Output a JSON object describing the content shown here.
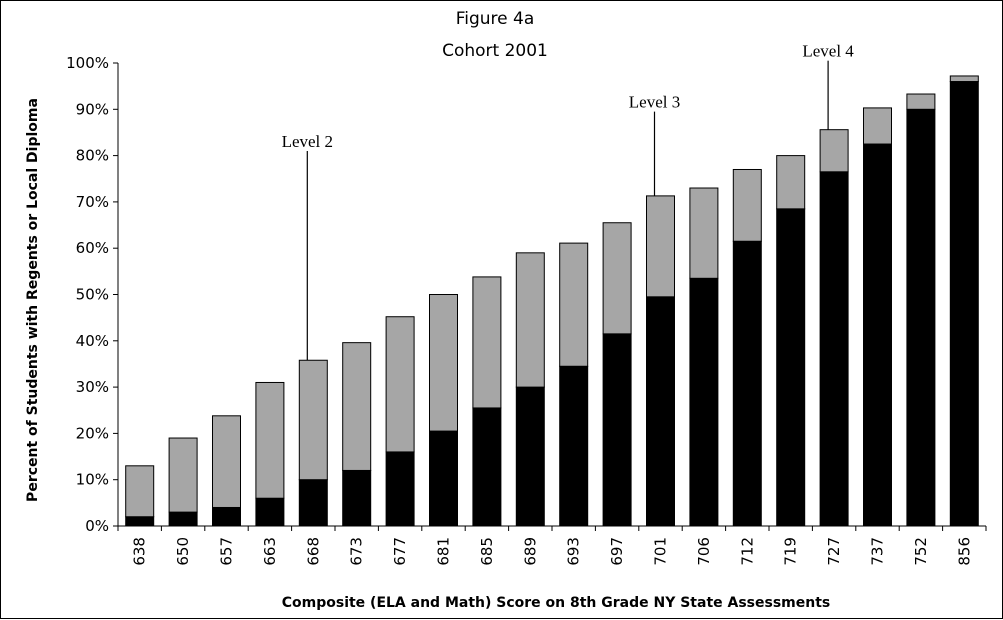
{
  "chart_data": {
    "type": "bar",
    "stacked": true,
    "title": "Figure 4a",
    "subtitle": "Cohort 2001",
    "xlabel": "Composite (ELA and Math) Score on 8th Grade NY State Assessments",
    "ylabel": "Percent of Students with Regents or Local Diploma",
    "categories": [
      "638",
      "650",
      "657",
      "663",
      "668",
      "673",
      "677",
      "681",
      "685",
      "689",
      "693",
      "697",
      "701",
      "706",
      "712",
      "719",
      "727",
      "737",
      "752",
      "856"
    ],
    "series": [
      {
        "key": "black",
        "color": "#000000",
        "values": [
          2,
          3,
          4,
          6,
          10,
          12,
          16,
          20.5,
          25.5,
          30,
          34.5,
          41.5,
          49.5,
          53.5,
          61.5,
          68.5,
          76.5,
          82.5,
          90,
          96
        ]
      },
      {
        "key": "gray",
        "color": "#a6a6a6",
        "values": [
          11,
          16,
          19.8,
          25,
          25.8,
          27.6,
          29.2,
          29.5,
          28.3,
          29,
          26.6,
          24,
          21.8,
          19.5,
          15.5,
          11.5,
          9.1,
          7.8,
          3.3,
          1.2
        ]
      }
    ],
    "yticks": [
      "0%",
      "10%",
      "20%",
      "30%",
      "40%",
      "50%",
      "60%",
      "70%",
      "80%",
      "90%",
      "100%"
    ],
    "ylim": [
      0,
      100
    ],
    "grid": false,
    "legend": "none",
    "annotations": [
      {
        "label": "Level 2",
        "category": "668",
        "top": 81
      },
      {
        "label": "Level 3",
        "category": "701",
        "top": 89.5
      },
      {
        "label": "Level 4",
        "category": "727",
        "top": 100.5
      }
    ]
  }
}
